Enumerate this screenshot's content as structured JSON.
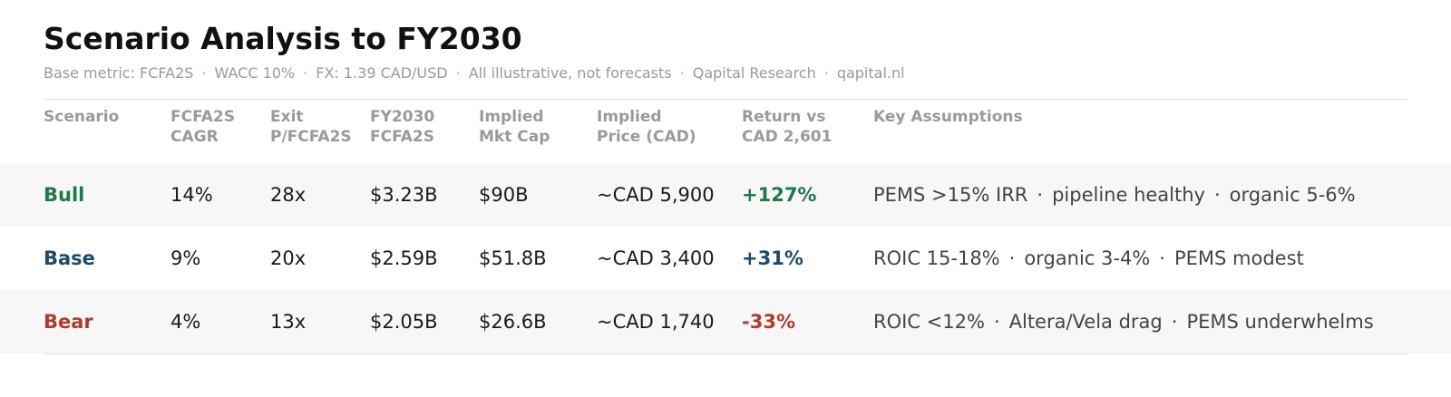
{
  "title": "Scenario Analysis to FY2030",
  "subtitle_parts": [
    "Base metric: FCFA2S",
    "WACC 10%",
    "FX: 1.39 CAD/USD",
    "All illustrative, not forecasts",
    "Qapital Research",
    "qapital.nl"
  ],
  "separator": "·",
  "columns": [
    [
      "Scenario"
    ],
    [
      "FCFA2S",
      "CAGR"
    ],
    [
      "Exit",
      "P/FCFA2S"
    ],
    [
      "FY2030",
      "FCFA2S"
    ],
    [
      "Implied",
      "Mkt Cap"
    ],
    [
      "Implied",
      "Price (CAD)"
    ],
    [
      "Return vs",
      "CAD 2,601"
    ],
    [
      "Key Assumptions"
    ]
  ],
  "rows": [
    {
      "scenario": "Bull",
      "color": "#1e7a4a",
      "cagr": "14%",
      "exit_multiple": "28x",
      "fy2030_fcfa2s": "$3.23B",
      "mkt_cap": "$90B",
      "price": "~CAD 5,900",
      "return": "+127%",
      "assumptions": [
        "PEMS >15% IRR",
        "pipeline healthy",
        "organic 5-6%"
      ]
    },
    {
      "scenario": "Base",
      "color": "#1d4a6b",
      "cagr": "9%",
      "exit_multiple": "20x",
      "fy2030_fcfa2s": "$2.59B",
      "mkt_cap": "$51.8B",
      "price": "~CAD 3,400",
      "return": "+31%",
      "assumptions": [
        "ROIC 15-18%",
        "organic 3-4%",
        "PEMS modest"
      ]
    },
    {
      "scenario": "Bear",
      "color": "#b03a2e",
      "cagr": "4%",
      "exit_multiple": "13x",
      "fy2030_fcfa2s": "$2.05B",
      "mkt_cap": "$26.6B",
      "price": "~CAD 1,740",
      "return": "-33%",
      "assumptions": [
        "ROIC <12%",
        "Altera/Vela drag",
        "PEMS underwhelms"
      ]
    }
  ]
}
